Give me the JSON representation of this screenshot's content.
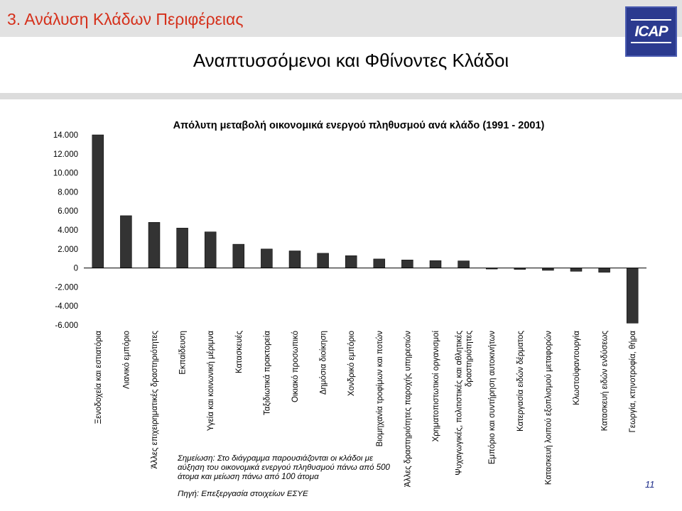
{
  "slide": {
    "section_title": "3. Ανάλυση Κλάδων Περιφέρειας",
    "title": "Αναπτυσσόμενοι και Φθίνοντες Κλάδοι",
    "logo_text": "ICAP",
    "note": "Σημείωση: Στο διάγραμμα παρουσιάζονται οι κλάδοι με αύξηση του οικονομικά ενεργού πληθυσμού πάνω από 500 άτομα και μείωση πάνω από 100 άτομα",
    "source": "Πηγή: Επεξεργασία στοιχείων ΕΣΥΕ",
    "page_number": "11",
    "colors": {
      "section_title": "#d5301b",
      "bar_fill": "#333333",
      "page_number": "#1f2e8a",
      "logo": "#2b3a8f"
    }
  },
  "chart_data": {
    "type": "bar",
    "title": "Απόλυτη μεταβολή οικονομικά ενεργού πληθυσμού ανά κλάδο (1991 - 2001)",
    "xlabel": "",
    "ylabel": "",
    "ylim": [
      -6000,
      14000
    ],
    "yticks": [
      14000,
      12000,
      10000,
      8000,
      6000,
      4000,
      2000,
      0,
      -2000,
      -4000,
      -6000
    ],
    "ytick_labels": [
      "14.000",
      "12.000",
      "10.000",
      "8.000",
      "6.000",
      "4.000",
      "2.000",
      "0",
      "-2.000",
      "-4.000",
      "-6.000"
    ],
    "grid": false,
    "legend": "none",
    "categories": [
      [
        "Ξενοδοχεία και εστιατόρια"
      ],
      [
        "Λιανικό εμπόριο"
      ],
      [
        "Άλλες επιχειρηματικές δραστηριότητες"
      ],
      [
        "Εκπαίδευση"
      ],
      [
        "Υγεία και κοινωνική μέριμνα"
      ],
      [
        "Κατασκευές"
      ],
      [
        "Ταξιδιωτικά πρακτορεία"
      ],
      [
        "Οικιακό προσωπικό"
      ],
      [
        "Δημόσια διοίκηση"
      ],
      [
        "Χονδρικό εμπόριο"
      ],
      [
        "Βιομηχανία τροφίμων και ποτών"
      ],
      [
        "Άλλες δραστηριότητες παροχής υπηρεσιών"
      ],
      [
        "Χρηματοπιστωτικοί οργανισμοί"
      ],
      [
        "Ψυχαγωγικές, πολιτιστικές και αθλητικές",
        "δραστηριότητες"
      ],
      [
        "Εμπόριο και συντήρηση αυτοκινήτων"
      ],
      [
        "Κατεργασία ειδών δέρματος"
      ],
      [
        "Κατασκευή λοιπού εξοπλισμού μεταφορών"
      ],
      [
        "Κλωστοϋφαντουργία"
      ],
      [
        "Κατασκευή ειδών ενδύσεως"
      ],
      [
        "Γεωργία, κτηνοτροφία, θήρα"
      ]
    ],
    "values": [
      14000,
      5500,
      4800,
      4200,
      3800,
      2500,
      2000,
      1800,
      1550,
      1300,
      950,
      850,
      780,
      750,
      -100,
      -150,
      -250,
      -350,
      -450,
      -5800
    ]
  }
}
